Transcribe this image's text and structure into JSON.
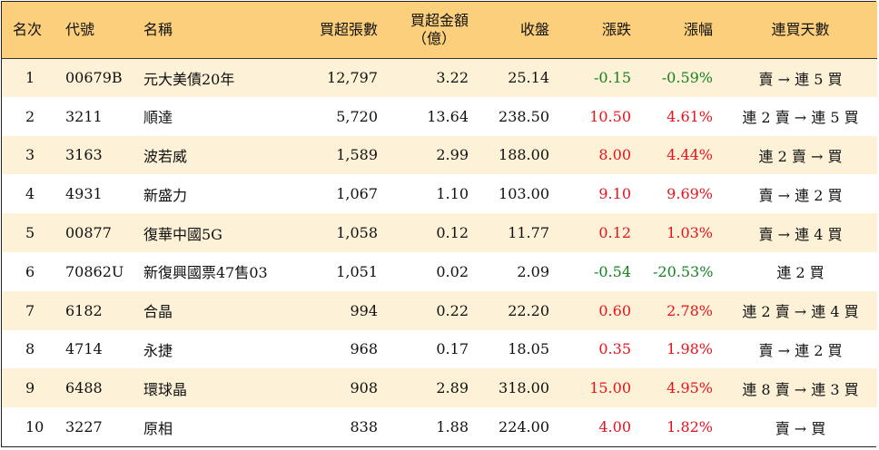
{
  "headers": {
    "rank": "名次",
    "code": "代號",
    "name": "名稱",
    "net_buy_lots": "買超張數",
    "net_buy_amount_line1": "買超金額",
    "net_buy_amount_line2": "（億）",
    "close": "收盤",
    "change": "漲跌",
    "change_pct": "漲幅",
    "consecutive_days": "連買天數"
  },
  "colors": {
    "header_bg": "#fbcf7b",
    "row_alt_bg": "#fdf1d7",
    "up": "#e8121c",
    "down": "#14821e"
  },
  "rows": [
    {
      "rank": "1",
      "code": "00679B",
      "name": "元大美債20年",
      "lots": "12,797",
      "amount": "3.22",
      "close": "25.14",
      "change": "-0.15",
      "pct": "-0.59%",
      "days": "賣 → 連 5 買",
      "dir": "down"
    },
    {
      "rank": "2",
      "code": "3211",
      "name": "順達",
      "lots": "5,720",
      "amount": "13.64",
      "close": "238.50",
      "change": "10.50",
      "pct": "4.61%",
      "days": "連 2 賣 → 連 5 買",
      "dir": "up"
    },
    {
      "rank": "3",
      "code": "3163",
      "name": "波若威",
      "lots": "1,589",
      "amount": "2.99",
      "close": "188.00",
      "change": "8.00",
      "pct": "4.44%",
      "days": "連 2 賣 → 買",
      "dir": "up"
    },
    {
      "rank": "4",
      "code": "4931",
      "name": "新盛力",
      "lots": "1,067",
      "amount": "1.10",
      "close": "103.00",
      "change": "9.10",
      "pct": "9.69%",
      "days": "賣 → 連 2 買",
      "dir": "up"
    },
    {
      "rank": "5",
      "code": "00877",
      "name": "復華中國5G",
      "lots": "1,058",
      "amount": "0.12",
      "close": "11.77",
      "change": "0.12",
      "pct": "1.03%",
      "days": "賣 → 連 4 買",
      "dir": "up"
    },
    {
      "rank": "6",
      "code": "70862U",
      "name": "新復興國票47售03",
      "lots": "1,051",
      "amount": "0.02",
      "close": "2.09",
      "change": "-0.54",
      "pct": "-20.53%",
      "days": "連 2 買",
      "dir": "down"
    },
    {
      "rank": "7",
      "code": "6182",
      "name": "合晶",
      "lots": "994",
      "amount": "0.22",
      "close": "22.20",
      "change": "0.60",
      "pct": "2.78%",
      "days": "連 2 賣 → 連 4 買",
      "dir": "up"
    },
    {
      "rank": "8",
      "code": "4714",
      "name": "永捷",
      "lots": "968",
      "amount": "0.17",
      "close": "18.05",
      "change": "0.35",
      "pct": "1.98%",
      "days": "賣 → 連 2 買",
      "dir": "up"
    },
    {
      "rank": "9",
      "code": "6488",
      "name": "環球晶",
      "lots": "908",
      "amount": "2.89",
      "close": "318.00",
      "change": "15.00",
      "pct": "4.95%",
      "days": "連 8 賣 → 連 3 買",
      "dir": "up"
    },
    {
      "rank": "10",
      "code": "3227",
      "name": "原相",
      "lots": "838",
      "amount": "1.88",
      "close": "224.00",
      "change": "4.00",
      "pct": "1.82%",
      "days": "賣 → 買",
      "dir": "up"
    }
  ]
}
